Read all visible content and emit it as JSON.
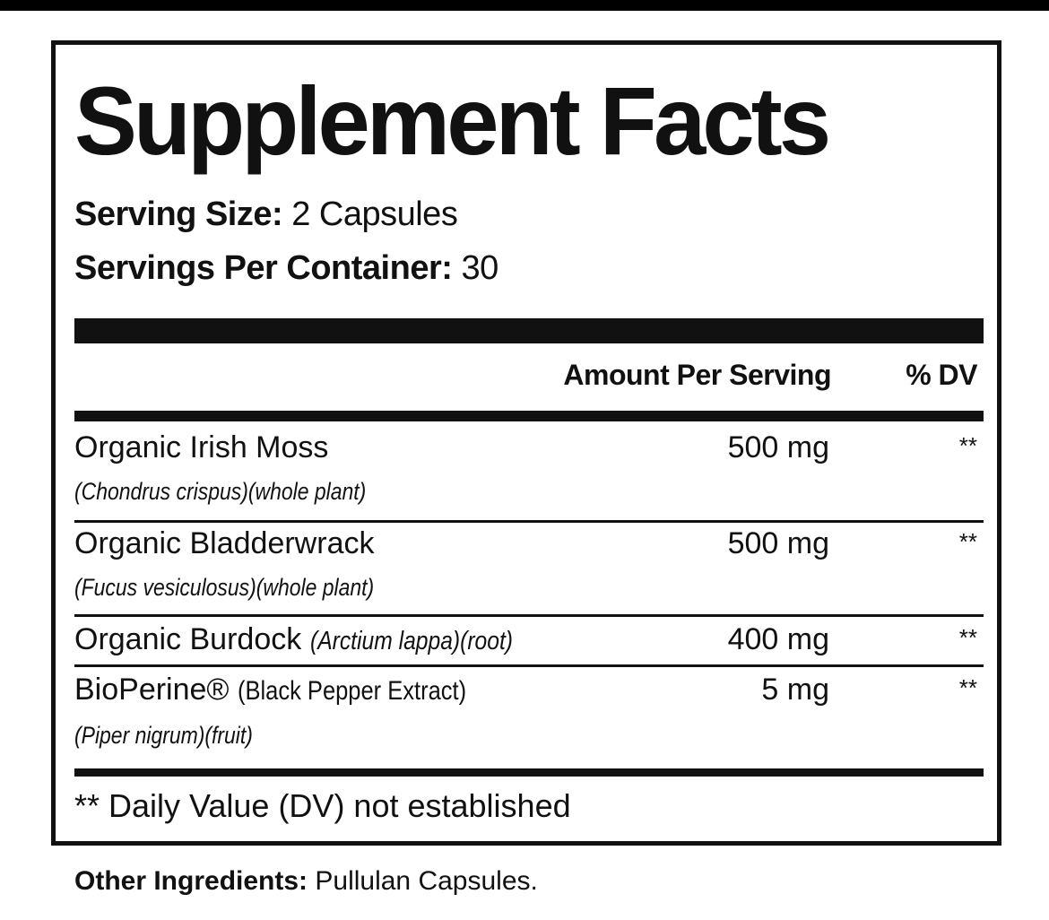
{
  "title": "Supplement Facts",
  "serving_size": {
    "label": "Serving Size:",
    "value": "2 Capsules"
  },
  "servings_per_container": {
    "label": "Servings Per Container:",
    "value": "30"
  },
  "columns": {
    "amount": "Amount Per Serving",
    "dv": "% DV"
  },
  "rows": [
    {
      "name": "Organic Irish Moss",
      "detail": "(Chondrus crispus)(whole plant)",
      "amount": "500 mg",
      "dv": "**"
    },
    {
      "name": "Organic Bladderwrack",
      "detail": "(Fucus vesiculosus)(whole plant)",
      "amount": "500 mg",
      "dv": "**"
    },
    {
      "name": "Organic Burdock",
      "detail": "(Arctium lappa)(root)",
      "amount": "400 mg",
      "dv": "**"
    },
    {
      "name": "BioPerine®",
      "name_extra": "(Black Pepper Extract)",
      "detail": "(Piper nigrum)(fruit)",
      "amount": "5 mg",
      "dv": "**"
    }
  ],
  "footnote": "** Daily Value (DV) not established",
  "other_ingredients": {
    "label": "Other Ingredients:",
    "value": "Pullulan Capsules."
  }
}
